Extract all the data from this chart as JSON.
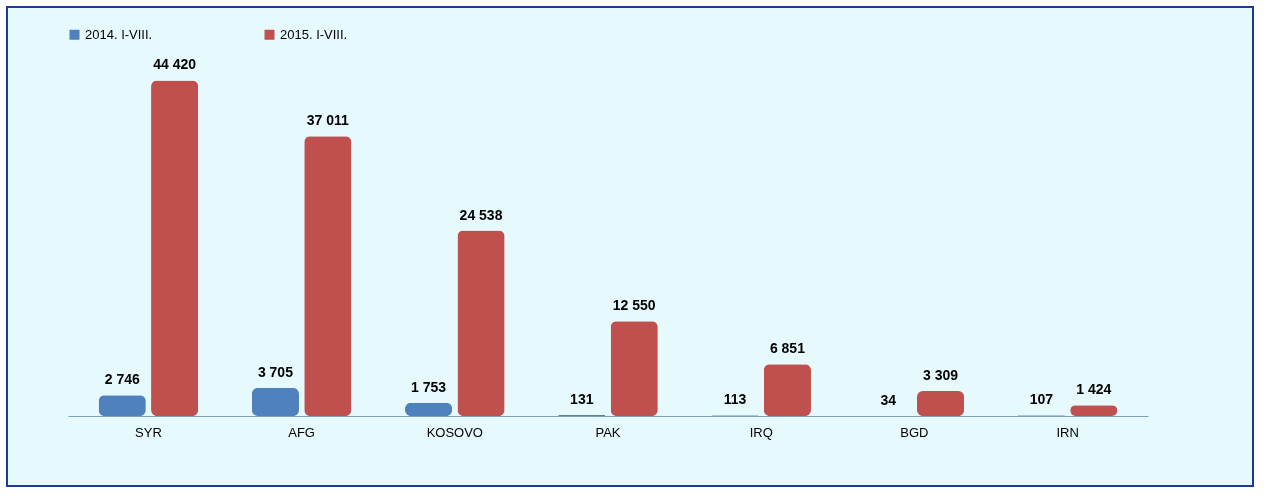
{
  "chart_data": {
    "type": "bar",
    "categories": [
      "SYR",
      "AFG",
      "KOSOVO",
      "PAK",
      "IRQ",
      "BGD",
      "IRN"
    ],
    "series": [
      {
        "name": "2014. I-VIII.",
        "color": "#4f81bd",
        "values": [
          2746,
          3705,
          1753,
          131,
          113,
          34,
          107
        ],
        "value_labels": [
          "2 746",
          "3 705",
          "1 753",
          "131",
          "113",
          "34",
          "107"
        ]
      },
      {
        "name": "2015. I-VIII.",
        "color": "#c0504d",
        "values": [
          44420,
          37011,
          24538,
          12550,
          6851,
          3309,
          1424
        ],
        "value_labels": [
          "44 420",
          "37 011",
          "24 538",
          "12 550",
          "6 851",
          "3 309",
          "1 424"
        ]
      }
    ],
    "legend": "top",
    "grid": false
  }
}
